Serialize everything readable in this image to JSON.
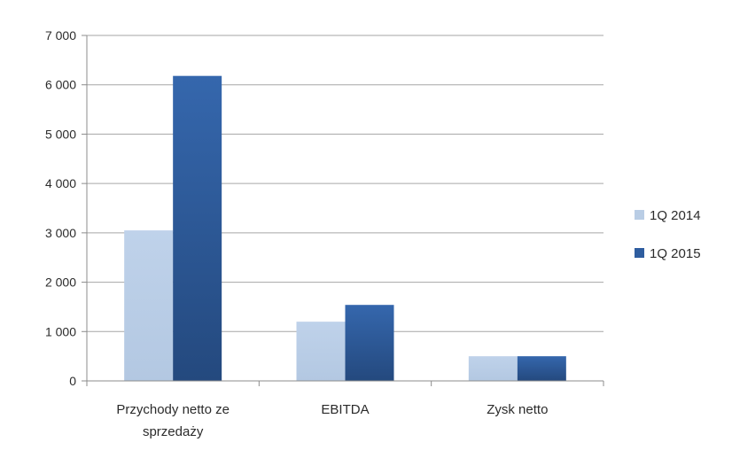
{
  "chart_data": {
    "type": "bar",
    "categories": [
      "Przychody netto ze sprzedaży",
      "EBITDA",
      "Zysk netto"
    ],
    "category_lines": [
      [
        "Przychody netto ze",
        "sprzedaży"
      ],
      [
        "EBITDA"
      ],
      [
        "Zysk netto"
      ]
    ],
    "series": [
      {
        "name": "1Q 2014",
        "values": [
          3050,
          1200,
          500
        ],
        "color": "#b9cde5"
      },
      {
        "name": "1Q 2015",
        "values": [
          6180,
          1540,
          500
        ],
        "color": "#2e5d9f"
      }
    ],
    "y_ticks": [
      0,
      1000,
      2000,
      3000,
      4000,
      5000,
      6000,
      7000
    ],
    "y_tick_labels": [
      "0",
      "1 000",
      "2 000",
      "3 000",
      "4 000",
      "5 000",
      "6 000",
      "7 000"
    ],
    "ylim": [
      0,
      7000
    ],
    "title": "",
    "xlabel": "",
    "ylabel": "",
    "grid": true,
    "legend_position": "right"
  }
}
